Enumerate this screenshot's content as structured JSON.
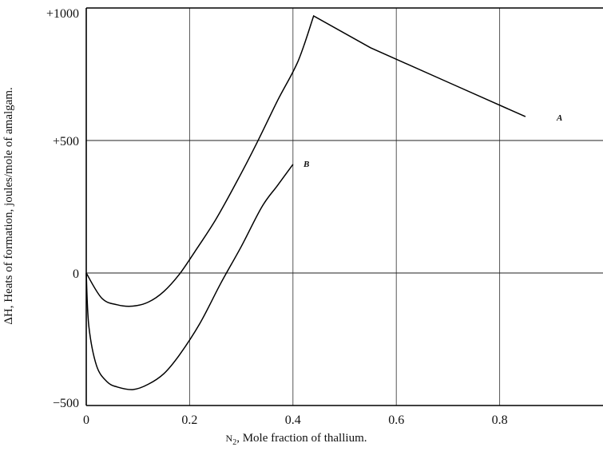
{
  "chart_data": {
    "type": "line",
    "xlabel_prefix": "N",
    "xlabel_subscript": "2",
    "xlabel_rest": ", Mole fraction of thallium.",
    "ylabel": "ΔH, Heats of formation, joules/mole of amalgam.",
    "xlim": [
      0,
      1.0
    ],
    "ylim": [
      -500,
      1000
    ],
    "grid": true,
    "x_ticks": [
      0,
      0.2,
      0.4,
      0.6,
      0.8
    ],
    "x_tick_labels": [
      "0",
      "0.2",
      "0.4",
      "0.6",
      "0.8"
    ],
    "y_ticks": [
      -500,
      0,
      500,
      1000
    ],
    "y_tick_labels": [
      "−500",
      "0",
      "+500",
      "+1000"
    ],
    "series": [
      {
        "name": "A",
        "x": [
          0,
          0.03,
          0.06,
          0.09,
          0.12,
          0.15,
          0.18,
          0.21,
          0.25,
          0.29,
          0.33,
          0.37,
          0.41,
          0.44,
          0.55,
          0.7,
          0.85
        ],
        "y": [
          0,
          -95,
          -120,
          -125,
          -110,
          -70,
          -5,
          80,
          200,
          340,
          490,
          650,
          800,
          970,
          850,
          720,
          590
        ]
      },
      {
        "name": "B",
        "x": [
          0,
          0.005,
          0.02,
          0.04,
          0.06,
          0.09,
          0.12,
          0.15,
          0.18,
          0.22,
          0.26,
          0.3,
          0.34,
          0.37,
          0.4
        ],
        "y": [
          0,
          -200,
          -350,
          -410,
          -430,
          -440,
          -420,
          -380,
          -310,
          -190,
          -40,
          100,
          250,
          330,
          410
        ]
      }
    ]
  }
}
